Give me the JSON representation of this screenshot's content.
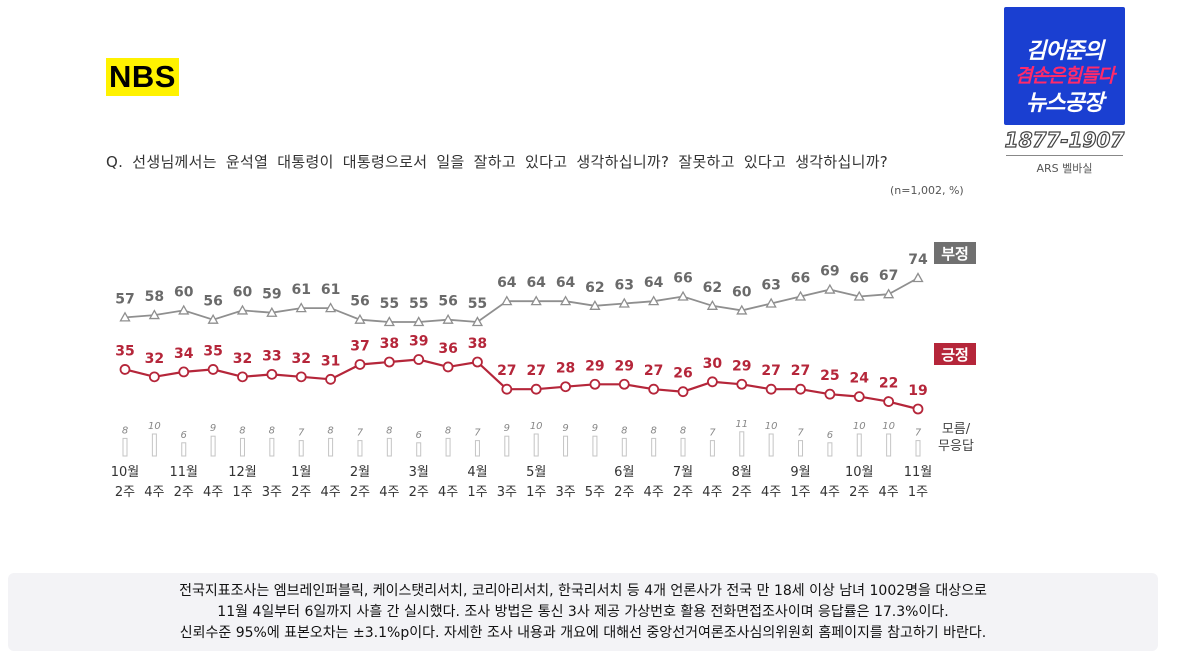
{
  "header": {
    "nbs_logo": "NBS",
    "show_logo": {
      "line1": "김어준의",
      "line2": "겸손은힘들다",
      "line3": "뉴스공장"
    },
    "phone": "1877-1907",
    "ars_label": "ARS 벨바실"
  },
  "question": "Q. 선생님께서는 윤석열 대통령이 대통령으로서 일을 잘하고 있다고 생각하십니까? 잘못하고 있다고 생각하십니까?",
  "sample_note": "(n=1,002, %)",
  "chart_data": {
    "type": "line",
    "categories": [
      [
        "10월",
        "2주"
      ],
      [
        "",
        "4주"
      ],
      [
        "11월",
        "2주"
      ],
      [
        "",
        "4주"
      ],
      [
        "12월",
        "1주"
      ],
      [
        "",
        "3주"
      ],
      [
        "1월",
        "2주"
      ],
      [
        "",
        "4주"
      ],
      [
        "2월",
        "2주"
      ],
      [
        "",
        "4주"
      ],
      [
        "3월",
        "2주"
      ],
      [
        "",
        "4주"
      ],
      [
        "4월",
        "1주"
      ],
      [
        "",
        "3주"
      ],
      [
        "5월",
        "1주"
      ],
      [
        "",
        "3주"
      ],
      [
        "",
        "5주"
      ],
      [
        "6월",
        "2주"
      ],
      [
        "",
        "4주"
      ],
      [
        "7월",
        "2주"
      ],
      [
        "",
        "4주"
      ],
      [
        "8월",
        "2주"
      ],
      [
        "",
        "4주"
      ],
      [
        "9월",
        "1주"
      ],
      [
        "",
        "4주"
      ],
      [
        "10월",
        "2주"
      ],
      [
        "",
        "4주"
      ],
      [
        "11월",
        "1주"
      ]
    ],
    "series": [
      {
        "name": "부정",
        "color": "#8f8f8f",
        "values": [
          57,
          58,
          60,
          56,
          60,
          59,
          61,
          61,
          56,
          55,
          55,
          56,
          55,
          64,
          64,
          64,
          62,
          63,
          64,
          66,
          62,
          60,
          63,
          66,
          69,
          66,
          67,
          74
        ]
      },
      {
        "name": "긍정",
        "color": "#b5263a",
        "values": [
          35,
          32,
          34,
          35,
          32,
          33,
          32,
          31,
          37,
          38,
          39,
          36,
          38,
          27,
          27,
          28,
          29,
          29,
          27,
          26,
          30,
          29,
          27,
          27,
          25,
          24,
          22,
          19
        ]
      },
      {
        "name": "모름/무응답",
        "color": "#bdbdbd",
        "values": [
          8,
          10,
          6,
          9,
          8,
          8,
          7,
          8,
          7,
          8,
          6,
          8,
          7,
          9,
          10,
          9,
          9,
          8,
          8,
          8,
          7,
          11,
          10,
          7,
          6,
          10,
          10,
          7
        ]
      }
    ],
    "legend_labels": {
      "negative": "부정",
      "positive": "긍정",
      "unknown_line1": "모름/",
      "unknown_line2": "무응답"
    },
    "ylim": [
      0,
      100
    ],
    "grid": false
  },
  "footer": {
    "line1": "전국지표조사는 엠브레인퍼블릭, 케이스탯리서치, 코리아리서치, 한국리서치 등 4개 언론사가 전국 만 18세 이상 남녀 1002명을 대상으로",
    "line2": "11월 4일부터 6일까지 사흘 간 실시했다. 조사 방법은 통신 3사 제공 가상번호 활용 전화면접조사이며 응답률은 17.3%이다.",
    "line3": "신뢰수준 95%에 표본오차는 ±3.1%p이다. 자세한 조사 내용과 개요에 대해선 중앙선거여론조사심의위원회 홈페이지를 참고하기 바란다."
  }
}
